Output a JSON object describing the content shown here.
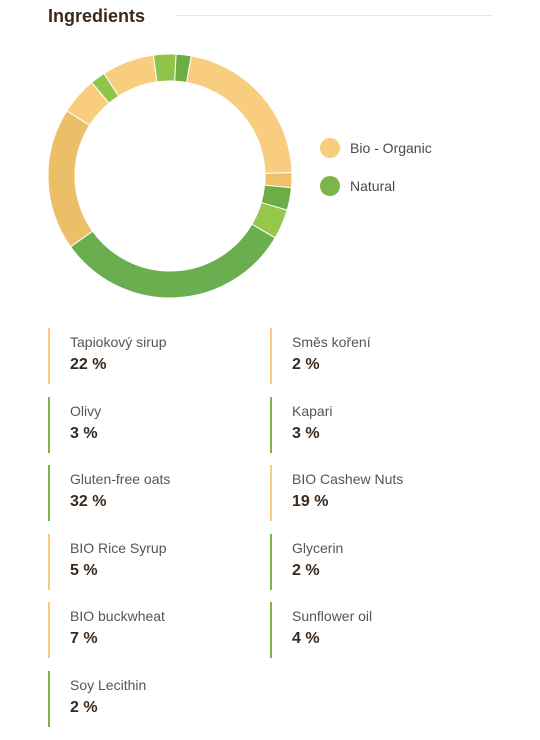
{
  "header": {
    "title": "Ingredients"
  },
  "legend": [
    {
      "label": "Bio - Organic",
      "color": "#f8cd7d"
    },
    {
      "label": "Natural",
      "color": "#7cb548"
    }
  ],
  "ingredients": [
    {
      "name": "Tapiokový sirup",
      "percent": "22 %",
      "category": "organic"
    },
    {
      "name": "Směs koření",
      "percent": "2 %",
      "category": "organic"
    },
    {
      "name": "Olivy",
      "percent": "3 %",
      "category": "natural"
    },
    {
      "name": "Kapari",
      "percent": "3 %",
      "category": "natural"
    },
    {
      "name": "Gluten-free oats",
      "percent": "32 %",
      "category": "natural"
    },
    {
      "name": "BIO Cashew Nuts",
      "percent": "19 %",
      "category": "organic"
    },
    {
      "name": "BIO Rice Syrup",
      "percent": "5 %",
      "category": "organic"
    },
    {
      "name": "Glycerin",
      "percent": "2 %",
      "category": "natural"
    },
    {
      "name": "BIO buckwheat",
      "percent": "7 %",
      "category": "organic"
    },
    {
      "name": "Sunflower oil",
      "percent": "4 %",
      "category": "natural"
    },
    {
      "name": "Soy Lecithin",
      "percent": "2 %",
      "category": "natural"
    }
  ],
  "chart_data": {
    "type": "pie",
    "donut": true,
    "slices": [
      {
        "label": "Tapiokový sirup",
        "value": 22,
        "color": "#f9cd80"
      },
      {
        "label": "Směs koření",
        "value": 2,
        "color": "#f3c06a"
      },
      {
        "label": "Kapari",
        "value": 3,
        "color": "#6cad46"
      },
      {
        "label": "Sunflower oil",
        "value": 4,
        "color": "#95c74a"
      },
      {
        "label": "Gluten-free oats",
        "value": 32,
        "color": "#6aae4f"
      },
      {
        "label": "BIO Cashew Nuts",
        "value": 19,
        "color": "#ebbf67"
      },
      {
        "label": "BIO Rice Syrup",
        "value": 5,
        "color": "#f8cd7d"
      },
      {
        "label": "Glycerin",
        "value": 2,
        "color": "#8fc34a"
      },
      {
        "label": "BIO buckwheat",
        "value": 7,
        "color": "#f8cd7d"
      },
      {
        "label": "Olivy",
        "value": 3,
        "color": "#8fc34a"
      },
      {
        "label": "Soy Lecithin",
        "value": 2,
        "color": "#6cad46"
      }
    ],
    "legend_position": "right"
  }
}
